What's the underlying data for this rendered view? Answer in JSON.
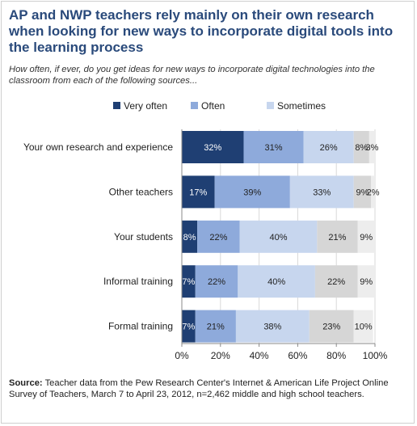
{
  "title": "AP and NWP teachers rely mainly on their own research when looking for new ways to incorporate digital tools into the learning process",
  "subtitle": "How often, if ever, do you get ideas for new ways to incorporate digital technologies into the classroom from each of the following sources...",
  "source": {
    "label": "Source:",
    "text": "Teacher data from the Pew Research Center's Internet & American Life Project Online Survey of Teachers, March 7 to April 23, 2012, n=2,462 middle and high school teachers."
  },
  "chart_data": {
    "type": "bar",
    "orientation": "horizontal",
    "stacked": true,
    "categories": [
      "Your own research and experience",
      "Other teachers",
      "Your students",
      "Informal training",
      "Formal training"
    ],
    "series": [
      {
        "name": "Very often",
        "color": "#1f3f73",
        "values": [
          32,
          17,
          8,
          7,
          7
        ],
        "labels": [
          "32%",
          "17%",
          "8%",
          "7%",
          "7%"
        ]
      },
      {
        "name": "Often",
        "color": "#8eaadb",
        "values": [
          31,
          39,
          22,
          22,
          21
        ],
        "labels": [
          "31%",
          "39%",
          "22%",
          "22%",
          "21%"
        ]
      },
      {
        "name": "Sometimes",
        "color": "#c7d6ee",
        "values": [
          26,
          33,
          40,
          40,
          38
        ],
        "labels": [
          "26%",
          "33%",
          "40%",
          "40%",
          "38%"
        ]
      },
      {
        "name": "",
        "color": "#d6d6d6",
        "values": [
          8,
          9,
          21,
          22,
          23
        ],
        "labels": [
          "8%",
          "9%",
          "21%",
          "22%",
          "23%"
        ]
      },
      {
        "name": "",
        "color": "#ededed",
        "values": [
          3,
          2,
          9,
          9,
          10
        ],
        "labels": [
          "3%",
          "2%",
          "9%",
          "9%",
          "10%"
        ]
      }
    ],
    "legend_series": [
      0,
      1,
      2
    ],
    "legend_position": "top",
    "xlim": [
      0,
      100
    ],
    "xticks": [
      0,
      20,
      40,
      60,
      80,
      100
    ],
    "xtick_labels": [
      "0%",
      "20%",
      "40%",
      "60%",
      "80%",
      "100%"
    ],
    "grid": true
  }
}
